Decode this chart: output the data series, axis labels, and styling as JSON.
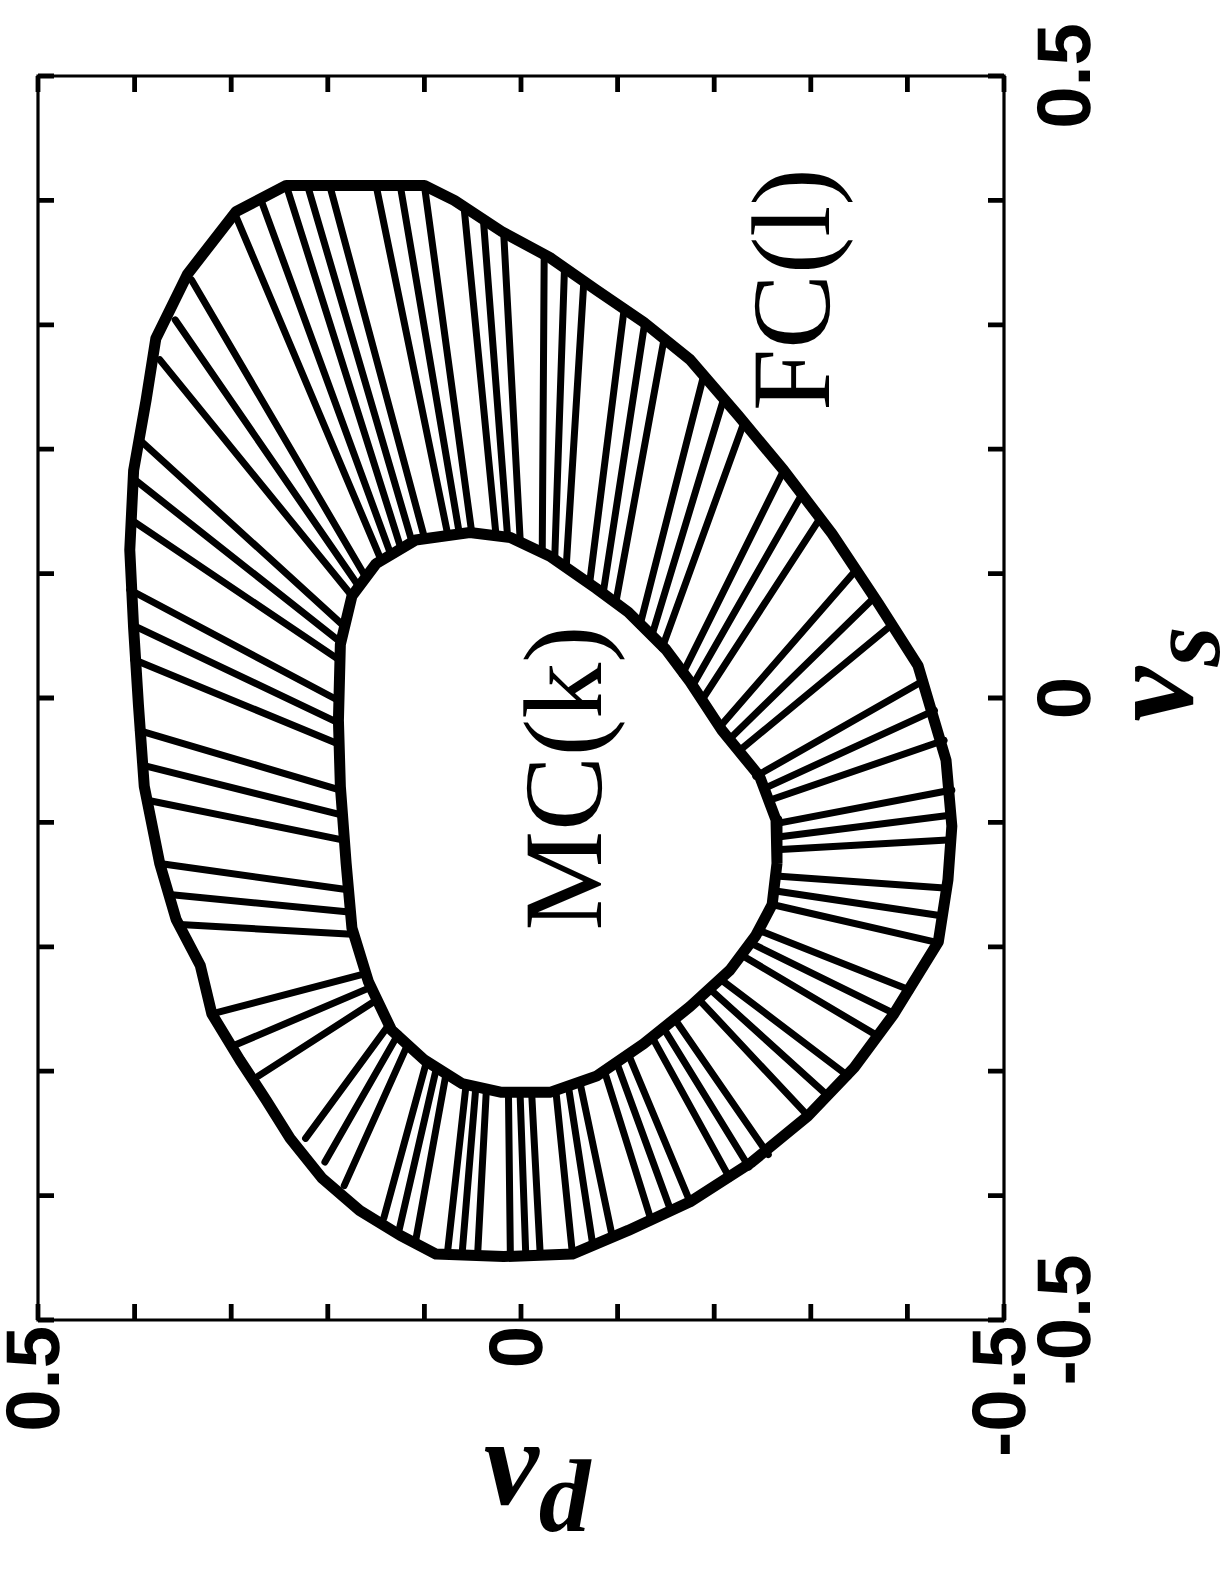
{
  "chart_data": {
    "type": "line",
    "xlabel": "v$_{d}$",
    "ylabel": "v$_{s}$",
    "xlim": [
      0.5,
      -0.5
    ],
    "xticks": [
      0.5,
      {
        "value": 0.4,
        "label": null
      },
      {
        "value": 0.3,
        "label": null
      },
      {
        "value": 0.2,
        "label": null
      },
      {
        "value": 0.1,
        "label": null
      },
      0,
      {
        "value": -0.1,
        "label": null
      },
      {
        "value": -0.2,
        "label": null
      },
      {
        "value": -0.3,
        "label": null
      },
      {
        "value": -0.4,
        "label": null
      },
      -0.5
    ],
    "ylim": [
      -0.5,
      0.5
    ],
    "yticks": [
      -0.5,
      {
        "value": -0.4,
        "label": null
      },
      {
        "value": -0.3,
        "label": null
      },
      {
        "value": -0.2,
        "label": null
      },
      {
        "value": -0.1,
        "label": null
      },
      0,
      {
        "value": 0.1,
        "label": null
      },
      {
        "value": 0.2,
        "label": null
      },
      {
        "value": 0.3,
        "label": null
      },
      {
        "value": 0.4,
        "label": null
      },
      0.5
    ],
    "annotations": [
      {
        "text": "FC(l)",
        "x": -0.175,
        "y": 0.272
      },
      "MC(k)"
    ],
    "series": [
      {
        "color": "#000000",
        "x": [
          0.405,
          0.401,
          0.388,
          0.378,
          0.345,
          0.295,
          0.243,
          0.171,
          0.1,
          0.069,
          0.02,
          -0.03,
          -0.078,
          -0.127,
          -0.175,
          -0.225,
          -0.272,
          -0.322,
          -0.37,
          -0.411,
          -0.44,
          -0.446,
          -0.442,
          -0.432,
          -0.386,
          -0.345,
          -0.297,
          -0.239,
          -0.175,
          -0.111,
          -0.053,
          0.018,
          0.088,
          0.125,
          0.167,
          0.206,
          0.239,
          0.264,
          0.291,
          0.32,
          0.332,
          0.357,
          0.374,
          0.39,
          0.396,
          0.401,
          0.405,
          0.401
        ],
        "values": [
          0.119,
          0.183,
          0.24,
          0.289,
          0.341,
          0.391,
          0.412,
          0.412,
          0.412,
          0.4,
          0.375,
          0.354,
          0.328,
          0.302,
          0.272,
          0.227,
          0.183,
          0.132,
          0.076,
          0.026,
          -0.05,
          -0.103,
          -0.146,
          -0.196,
          -0.254,
          -0.297,
          -0.336,
          -0.373,
          -0.405,
          -0.428,
          -0.447,
          -0.449,
          -0.447,
          -0.432,
          -0.412,
          -0.386,
          -0.354,
          -0.323,
          -0.291,
          -0.254,
          -0.215,
          -0.178,
          -0.133,
          -0.071,
          -0.006,
          0.056,
          0.119,
          0.183
        ]
      },
      {
        "color": "#000000",
        "x": [
          0.189,
          0.187,
          0.175,
          0.15,
          0.109,
          0.053,
          0.011,
          -0.03,
          -0.078,
          -0.111,
          -0.15,
          -0.175,
          -0.208,
          -0.247,
          -0.264,
          -0.265,
          -0.26,
          -0.243,
          -0.216,
          -0.175,
          -0.127,
          -0.078,
          -0.03,
          0.02,
          0.061,
          0.1,
          0.134,
          0.158,
          0.175,
          0.181,
          0.187,
          0.189,
          0.187
        ],
        "values": [
          -0.018,
          0.043,
          0.082,
          0.108,
          0.127,
          0.133,
          0.129,
          0.114,
          0.088,
          0.069,
          0.039,
          0.013,
          -0.026,
          -0.063,
          -0.098,
          -0.133,
          -0.166,
          -0.191,
          -0.219,
          -0.248,
          -0.278,
          -0.304,
          -0.317,
          -0.317,
          -0.31,
          -0.291,
          -0.267,
          -0.228,
          -0.185,
          -0.133,
          -0.071,
          -0.018,
          0.043
        ]
      },
      {
        "color": "#000000",
        "x": [
          0.243,
          0.125
        ],
        "values": [
          0.412,
          0.122
        ]
      },
      {
        "color": "#000000",
        "x": [
          0.221,
          0.113
        ],
        "values": [
          0.412,
          0.126
        ]
      },
      {
        "color": "#000000",
        "x": [
          0.198,
          0.1
        ],
        "values": [
          0.412,
          0.129
        ]
      },
      {
        "color": "#000000",
        "x": [
          0.15,
          0.076
        ],
        "values": [
          0.412,
          0.132
        ]
      },
      {
        "color": "#000000",
        "x": [
          0.125,
          0.064
        ],
        "values": [
          0.412,
          0.133
        ]
      },
      {
        "color": "#000000",
        "x": [
          0.1,
          0.051
        ],
        "values": [
          0.412,
          0.133
        ]
      },
      {
        "color": "#000000",
        "x": [
          0.059,
          0.026
        ],
        "values": [
          0.395,
          0.132
        ]
      },
      {
        "color": "#000000",
        "x": [
          0.039,
          0.014
        ],
        "values": [
          0.385,
          0.131
        ]
      },
      {
        "color": "#000000",
        "x": [
          0.018,
          0.001
        ],
        "values": [
          0.375,
          0.129
        ]
      },
      {
        "color": "#000000",
        "x": [
          -0.024,
          -0.022
        ],
        "values": [
          0.355,
          0.119
        ]
      },
      {
        "color": "#000000",
        "x": [
          -0.045,
          -0.035
        ],
        "values": [
          0.345,
          0.114
        ]
      },
      {
        "color": "#000000",
        "x": [
          -0.065,
          -0.047
        ],
        "values": [
          0.334,
          0.108
        ]
      },
      {
        "color": "#000000",
        "x": [
          -0.107,
          -0.071
        ],
        "values": [
          0.314,
          0.092
        ]
      },
      {
        "color": "#000000",
        "x": [
          -0.128,
          -0.085
        ],
        "values": [
          0.301,
          0.084
        ]
      },
      {
        "color": "#000000",
        "x": [
          -0.148,
          -0.098
        ],
        "values": [
          0.288,
          0.076
        ]
      },
      {
        "color": "#000000",
        "x": [
          -0.189,
          -0.123
        ],
        "values": [
          0.259,
          0.058
        ]
      },
      {
        "color": "#000000",
        "x": [
          -0.21,
          -0.135
        ],
        "values": [
          0.241,
          0.049
        ]
      },
      {
        "color": "#000000",
        "x": [
          -0.231,
          -0.146
        ],
        "values": [
          0.222,
          0.04
        ]
      },
      {
        "color": "#000000",
        "x": [
          -0.272,
          -0.167
        ],
        "values": [
          0.183,
          0.019
        ]
      },
      {
        "color": "#000000",
        "x": [
          -0.291,
          -0.177
        ],
        "values": [
          0.164,
          0.009
        ]
      },
      {
        "color": "#000000",
        "x": [
          -0.31,
          -0.187
        ],
        "values": [
          0.145,
          -0.002
        ]
      },
      {
        "color": "#000000",
        "x": [
          -0.347,
          -0.206
        ],
        "values": [
          0.103,
          -0.023
        ]
      },
      {
        "color": "#000000",
        "x": [
          -0.366,
          -0.216
        ],
        "values": [
          0.081,
          -0.033
        ]
      },
      {
        "color": "#000000",
        "x": [
          -0.384,
          -0.225
        ],
        "values": [
          0.059,
          -0.043
        ]
      },
      {
        "color": "#000000",
        "x": [
          -0.417,
          -0.243
        ],
        "values": [
          0.014,
          -0.063
        ]
      },
      {
        "color": "#000000",
        "x": [
          -0.428,
          -0.251
        ],
        "values": [
          -0.01,
          -0.073
        ]
      },
      {
        "color": "#000000",
        "x": [
          -0.438,
          -0.258
        ],
        "values": [
          -0.034,
          -0.082
        ]
      },
      {
        "color": "#000000",
        "x": [
          -0.446,
          -0.264
        ],
        "values": [
          -0.074,
          -0.101
        ]
      },
      {
        "color": "#000000",
        "x": [
          -0.446,
          -0.264
        ],
        "values": [
          -0.094,
          -0.112
        ]
      },
      {
        "color": "#000000",
        "x": [
          -0.446,
          -0.264
        ],
        "values": [
          -0.114,
          -0.122
        ]
      },
      {
        "color": "#000000",
        "x": [
          -0.442,
          -0.264
        ],
        "values": [
          -0.153,
          -0.143
        ]
      },
      {
        "color": "#000000",
        "x": [
          -0.435,
          -0.262
        ],
        "values": [
          -0.175,
          -0.155
        ]
      },
      {
        "color": "#000000",
        "x": [
          -0.428,
          -0.26
        ],
        "values": [
          -0.196,
          -0.166
        ]
      },
      {
        "color": "#000000",
        "x": [
          -0.403,
          -0.247
        ],
        "values": [
          -0.235,
          -0.187
        ]
      },
      {
        "color": "#000000",
        "x": [
          -0.387,
          -0.238
        ],
        "values": [
          -0.254,
          -0.197
        ]
      },
      {
        "color": "#000000",
        "x": [
          -0.37,
          -0.229
        ],
        "values": [
          -0.272,
          -0.207
        ]
      },
      {
        "color": "#000000",
        "x": [
          -0.339,
          -0.208
        ],
        "values": [
          -0.304,
          -0.227
        ]
      },
      {
        "color": "#000000",
        "x": [
          -0.318,
          -0.197
        ],
        "values": [
          -0.32,
          -0.235
        ]
      },
      {
        "color": "#000000",
        "x": [
          -0.297,
          -0.185
        ],
        "values": [
          -0.336,
          -0.243
        ]
      },
      {
        "color": "#000000",
        "x": [
          -0.256,
          -0.16
        ],
        "values": [
          -0.367,
          -0.259
        ]
      },
      {
        "color": "#000000",
        "x": [
          -0.236,
          -0.148
        ],
        "values": [
          -0.377,
          -0.266
        ]
      },
      {
        "color": "#000000",
        "x": [
          -0.216,
          -0.136
        ],
        "values": [
          -0.386,
          -0.273
        ]
      },
      {
        "color": "#000000",
        "x": [
          -0.175,
          -0.111
        ],
        "values": [
          -0.405,
          -0.286
        ]
      },
      {
        "color": "#000000",
        "x": [
          -0.155,
          -0.099
        ],
        "values": [
          -0.412,
          -0.293
        ]
      },
      {
        "color": "#000000",
        "x": [
          -0.134,
          -0.086
        ],
        "values": [
          -0.418,
          -0.299
        ]
      },
      {
        "color": "#000000",
        "x": [
          -0.094,
          -0.061
        ],
        "values": [
          -0.431,
          -0.309
        ]
      },
      {
        "color": "#000000",
        "x": [
          -0.074,
          -0.049
        ],
        "values": [
          -0.438,
          -0.312
        ]
      },
      {
        "color": "#000000",
        "x": [
          -0.053,
          -0.036
        ],
        "values": [
          -0.445,
          -0.315
        ]
      },
      {
        "color": "#000000",
        "x": [
          -0.02,
          -0.011
        ],
        "values": [
          -0.449,
          -0.317
        ]
      },
      {
        "color": "#000000",
        "x": [
          -0.005,
          0.001
        ],
        "values": [
          -0.449,
          -0.317
        ]
      },
      {
        "color": "#000000",
        "x": [
          0.011,
          0.013
        ],
        "values": [
          -0.449,
          -0.317
        ]
      },
      {
        "color": "#000000",
        "x": [
          0.045,
          0.036
        ],
        "values": [
          -0.449,
          -0.317
        ]
      },
      {
        "color": "#000000",
        "x": [
          0.061,
          0.047
        ],
        "values": [
          -0.447,
          -0.315
        ]
      },
      {
        "color": "#000000",
        "x": [
          0.076,
          0.057
        ],
        "values": [
          -0.445,
          -0.312
        ]
      },
      {
        "color": "#000000",
        "x": [
          0.109,
          0.078
        ],
        "values": [
          -0.436,
          -0.304
        ]
      },
      {
        "color": "#000000",
        "x": [
          0.126,
          0.088
        ],
        "values": [
          -0.427,
          -0.299
        ]
      },
      {
        "color": "#000000",
        "x": [
          0.142,
          0.098
        ],
        "values": [
          -0.418,
          -0.293
        ]
      },
      {
        "color": "#000000",
        "x": [
          0.183,
          0.117
        ],
        "values": [
          -0.392,
          -0.278
        ]
      },
      {
        "color": "#000000",
        "x": [
          0.203,
          0.127
        ],
        "values": [
          -0.373,
          -0.27
        ]
      },
      {
        "color": "#000000",
        "x": [
          0.223,
          0.136
        ],
        "values": [
          -0.354,
          -0.262
        ]
      },
      {
        "color": "#000000",
        "x": [
          0.272,
          0.15
        ],
        "values": [
          -0.304,
          -0.243
        ]
      },
      {
        "color": "#000000",
        "x": [
          0.296,
          0.157
        ],
        "values": [
          -0.279,
          -0.233
        ]
      },
      {
        "color": "#000000",
        "x": [
          0.32,
          0.163
        ],
        "values": [
          -0.254,
          -0.222
        ]
      },
      {
        "color": "#000000",
        "x": [
          0.353,
          0.175
        ],
        "values": [
          -0.182,
          -0.19
        ]
      },
      {
        "color": "#000000",
        "x": [
          0.364,
          0.178
        ],
        "values": [
          -0.158,
          -0.172
        ]
      },
      {
        "color": "#000000",
        "x": [
          0.374,
          0.181
        ],
        "values": [
          -0.133,
          -0.154
        ]
      },
      {
        "color": "#000000",
        "x": [
          0.388,
          0.185
        ],
        "values": [
          -0.082,
          -0.114
        ]
      },
      {
        "color": "#000000",
        "x": [
          0.392,
          0.186
        ],
        "values": [
          -0.054,
          -0.094
        ]
      },
      {
        "color": "#000000",
        "x": [
          0.396,
          0.187
        ],
        "values": [
          -0.026,
          -0.074
        ]
      },
      {
        "color": "#000000",
        "x": [
          0.401,
          0.189
        ],
        "values": [
          0.031,
          -0.037
        ]
      },
      {
        "color": "#000000",
        "x": [
          0.403,
          0.189
        ],
        "values": [
          0.059,
          -0.02
        ]
      },
      {
        "color": "#000000",
        "x": [
          0.405,
          0.189
        ],
        "values": [
          0.087,
          -0.002
        ]
      },
      {
        "color": "#000000",
        "x": [
          0.403,
          0.189
        ],
        "values": [
          0.143,
          0.031
        ]
      },
      {
        "color": "#000000",
        "x": [
          0.399,
          0.187
        ],
        "values": [
          0.175,
          0.045
        ]
      },
      {
        "color": "#000000",
        "x": [
          0.394,
          0.185
        ],
        "values": [
          0.207,
          0.059
        ]
      },
      {
        "color": "#000000",
        "x": [
          0.374,
          0.177
        ],
        "values": [
          0.272,
          0.084
        ]
      },
      {
        "color": "#000000",
        "x": [
          0.358,
          0.17
        ],
        "values": [
          0.304,
          0.092
        ]
      },
      {
        "color": "#000000",
        "x": [
          0.341,
          0.163
        ],
        "values": [
          0.336,
          0.1
        ]
      },
      {
        "color": "#000000",
        "x": [
          0.295,
          0.146
        ],
        "values": [
          0.387,
          0.113
        ]
      },
      {
        "color": "#000000",
        "x": [
          0.269,
          0.136
        ],
        "values": [
          0.4,
          0.118
        ]
      }
    ]
  }
}
